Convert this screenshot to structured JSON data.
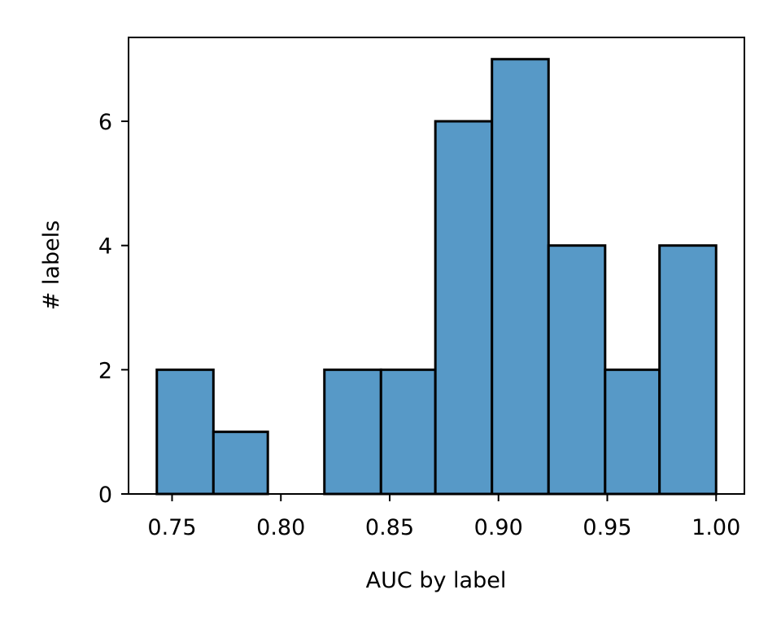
{
  "chart_data": {
    "type": "bar",
    "title": "",
    "xlabel": "AUC by label",
    "ylabel": "# labels",
    "xlim": [
      0.73,
      1.013
    ],
    "ylim": [
      0,
      7.35
    ],
    "grid": false,
    "legend": "none",
    "xticks": [
      {
        "value": 0.75,
        "label": "0.75"
      },
      {
        "value": 0.8,
        "label": "0.80"
      },
      {
        "value": 0.85,
        "label": "0.85"
      },
      {
        "value": 0.9,
        "label": "0.90"
      },
      {
        "value": 0.95,
        "label": "0.95"
      },
      {
        "value": 1.0,
        "label": "1.00"
      }
    ],
    "yticks": [
      {
        "value": 0,
        "label": "0"
      },
      {
        "value": 2,
        "label": "2"
      },
      {
        "value": 4,
        "label": "4"
      },
      {
        "value": 6,
        "label": "6"
      }
    ],
    "bins": [
      {
        "start": 0.743,
        "end": 0.769,
        "count": 2
      },
      {
        "start": 0.769,
        "end": 0.794,
        "count": 1
      },
      {
        "start": 0.794,
        "end": 0.82,
        "count": 0
      },
      {
        "start": 0.82,
        "end": 0.846,
        "count": 2
      },
      {
        "start": 0.846,
        "end": 0.871,
        "count": 2
      },
      {
        "start": 0.871,
        "end": 0.897,
        "count": 6
      },
      {
        "start": 0.897,
        "end": 0.923,
        "count": 7
      },
      {
        "start": 0.923,
        "end": 0.949,
        "count": 4
      },
      {
        "start": 0.949,
        "end": 0.974,
        "count": 2
      },
      {
        "start": 0.974,
        "end": 1.0,
        "count": 4
      }
    ],
    "bar_color": "#5799c7",
    "edge_color": "#000000"
  }
}
